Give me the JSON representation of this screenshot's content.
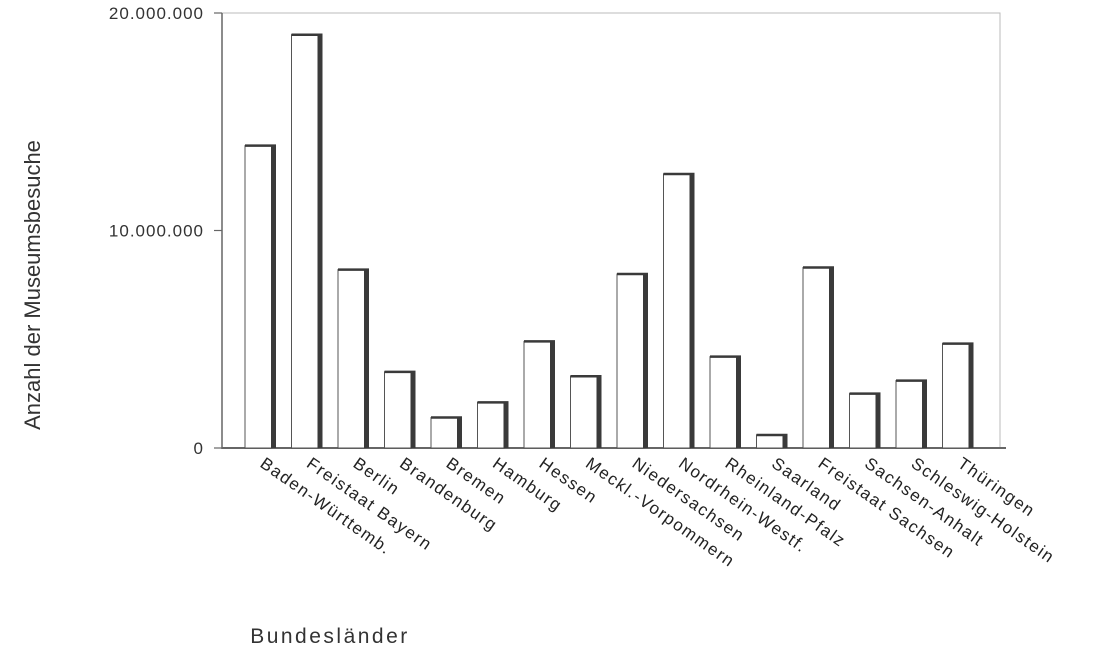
{
  "chart_data": {
    "type": "bar",
    "title": "",
    "xlabel": "Bundesländer",
    "ylabel": "Anzahl der Museumsbesuche",
    "ylim": [
      0,
      20000000
    ],
    "yticks": [
      {
        "value": 0,
        "label": "0"
      },
      {
        "value": 10000000,
        "label": "10.000.000"
      },
      {
        "value": 20000000,
        "label": "20.000.000"
      }
    ],
    "categories": [
      "Baden-Württemb.",
      "Freistaat Bayern",
      "Berlin",
      "Brandenburg",
      "Bremen",
      "Hamburg",
      "Hessen",
      "Meckl.-Vorpommern",
      "Niedersachsen",
      "Nordrhein-Westf.",
      "Rheinland-Pfalz",
      "Saarland",
      "Freistaat Sachsen",
      "Sachsen-Anhalt",
      "Schleswig-Holstein",
      "Thüringen"
    ],
    "values": [
      13900000,
      19000000,
      8200000,
      3500000,
      1400000,
      2100000,
      4900000,
      3300000,
      8000000,
      12600000,
      4200000,
      600000,
      8300000,
      2500000,
      3100000,
      4800000
    ],
    "colors": {
      "bar_face": "#ffffff",
      "bar_outline": "#555555",
      "bar_shadow": "#3a3a3a",
      "axis": "#666666"
    },
    "grid": false,
    "legend": "none"
  }
}
